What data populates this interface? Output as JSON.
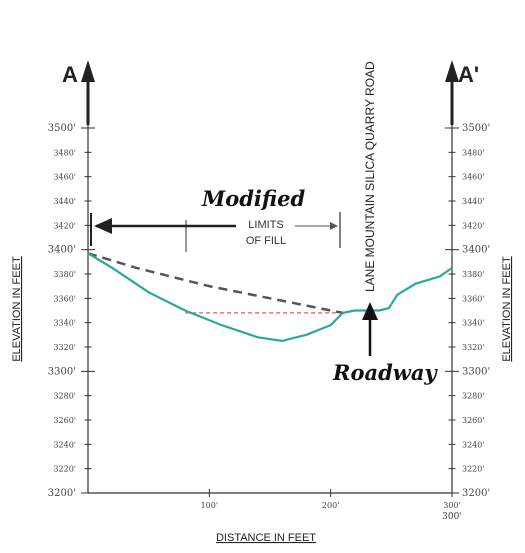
{
  "section": {
    "left_label": "A",
    "right_label": "A'"
  },
  "road_label": "LANE MOUNTAIN SILICA QUARRY ROAD",
  "annotations": {
    "modified": "Modified",
    "limits_line1": "LIMITS",
    "limits_line2": "OF FILL",
    "roadway": "Roadway"
  },
  "axes": {
    "left_ylabel": "ELEVATION IN FEET",
    "right_ylabel": "ELEVATION IN FEET",
    "xlabel": "DISTANCE IN FEET",
    "left_ticks": [
      "3500'",
      "3480'",
      "3460'",
      "3440'",
      "3420'",
      "3400'",
      "3380'",
      "3360'",
      "3340'",
      "3320'",
      "3300'",
      "3280'",
      "3260'",
      "3240'",
      "3220'",
      "3200'"
    ],
    "right_ticks": [
      "3500'",
      "3480'",
      "3460'",
      "3440'",
      "3420'",
      "3400'",
      "3380'",
      "3360'",
      "3340'",
      "3320'",
      "3300'",
      "3280'",
      "3260'",
      "3240'",
      "3220'",
      "3200'"
    ],
    "x_ticks": [
      "100'",
      "200'",
      "300'"
    ],
    "x_end_label": "300'"
  },
  "colors": {
    "ground": "#2aa89a",
    "fill_line": "#555555",
    "dashed_red": "#e05a5a",
    "ink": "#222222"
  },
  "profile": {
    "x_units": "feet",
    "y_units": "feet",
    "xlim": [
      0,
      300
    ],
    "ylim": [
      3200,
      3500
    ],
    "ground": [
      [
        0,
        3397
      ],
      [
        20,
        3385
      ],
      [
        50,
        3365
      ],
      [
        80,
        3350
      ],
      [
        110,
        3338
      ],
      [
        140,
        3328
      ],
      [
        160,
        3325
      ],
      [
        180,
        3330
      ],
      [
        200,
        3338
      ],
      [
        210,
        3348
      ],
      [
        220,
        3350
      ],
      [
        240,
        3350
      ],
      [
        248,
        3352
      ],
      [
        255,
        3363
      ],
      [
        270,
        3372
      ],
      [
        290,
        3378
      ],
      [
        300,
        3385
      ]
    ],
    "modified_fill": [
      [
        0,
        3397
      ],
      [
        40,
        3385
      ],
      [
        100,
        3370
      ],
      [
        150,
        3360
      ],
      [
        210,
        3348
      ]
    ],
    "existing_fill_toe": [
      [
        80,
        3348
      ],
      [
        210,
        3348
      ]
    ]
  }
}
